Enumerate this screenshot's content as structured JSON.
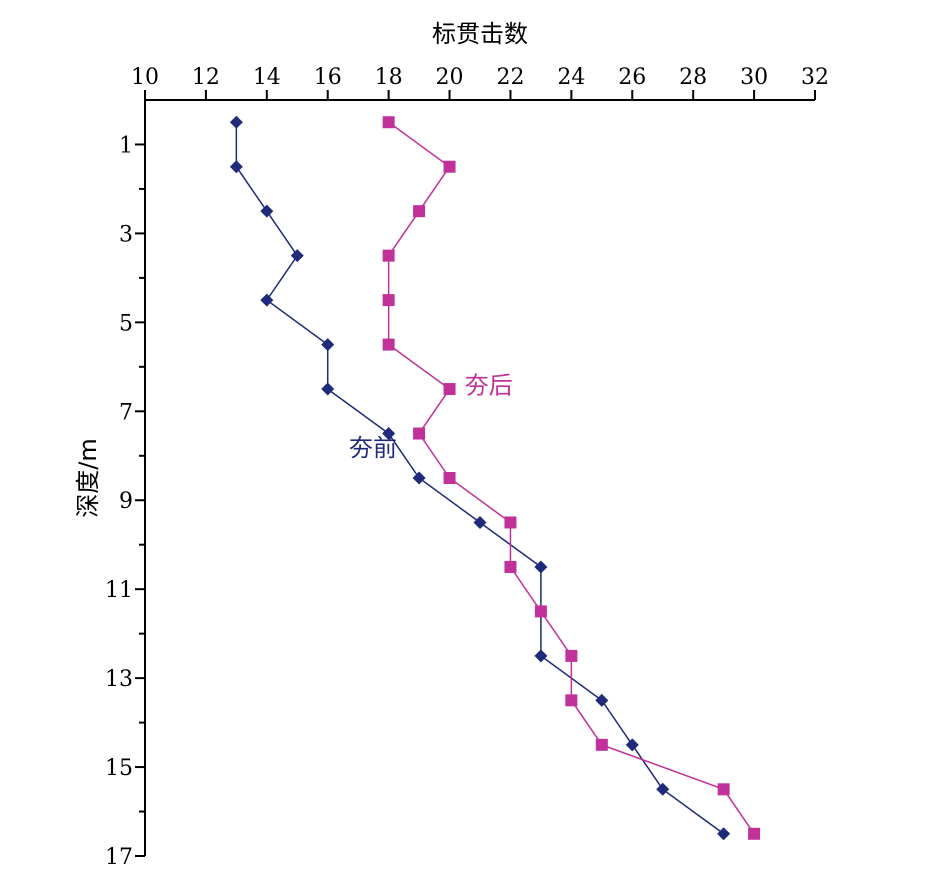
{
  "chart_data": {
    "type": "line",
    "xlabel": "标贯击数",
    "ylabel": "深度/m",
    "xlim": [
      10,
      32
    ],
    "ylim": [
      0,
      17
    ],
    "x_axis_position": "top",
    "y_axis_inverted": true,
    "x_ticks": [
      10,
      12,
      14,
      16,
      18,
      20,
      22,
      24,
      26,
      28,
      30,
      32
    ],
    "y_ticks": [
      1,
      3,
      5,
      7,
      9,
      11,
      13,
      15,
      17
    ],
    "grid": false,
    "series": [
      {
        "name": "夯前",
        "color": "#1f2a7a",
        "marker": "diamond",
        "label_at": {
          "x": 16.7,
          "y": 7.8
        },
        "points": [
          {
            "x": 13,
            "y": 0.5
          },
          {
            "x": 13,
            "y": 1.5
          },
          {
            "x": 14,
            "y": 2.5
          },
          {
            "x": 15,
            "y": 3.5
          },
          {
            "x": 14,
            "y": 4.5
          },
          {
            "x": 16,
            "y": 5.5
          },
          {
            "x": 16,
            "y": 6.5
          },
          {
            "x": 18,
            "y": 7.5
          },
          {
            "x": 19,
            "y": 8.5
          },
          {
            "x": 21,
            "y": 9.5
          },
          {
            "x": 23,
            "y": 10.5
          },
          {
            "x": 23,
            "y": 11.5
          },
          {
            "x": 23,
            "y": 12.5
          },
          {
            "x": 25,
            "y": 13.5
          },
          {
            "x": 26,
            "y": 14.5
          },
          {
            "x": 27,
            "y": 15.5
          },
          {
            "x": 29,
            "y": 16.5
          }
        ]
      },
      {
        "name": "夯后",
        "color": "#c0319a",
        "marker": "square",
        "label_at": {
          "x": 20.5,
          "y": 6.4
        },
        "points": [
          {
            "x": 18,
            "y": 0.5
          },
          {
            "x": 20,
            "y": 1.5
          },
          {
            "x": 19,
            "y": 2.5
          },
          {
            "x": 18,
            "y": 3.5
          },
          {
            "x": 18,
            "y": 4.5
          },
          {
            "x": 18,
            "y": 5.5
          },
          {
            "x": 20,
            "y": 6.5
          },
          {
            "x": 19,
            "y": 7.5
          },
          {
            "x": 20,
            "y": 8.5
          },
          {
            "x": 22,
            "y": 9.5
          },
          {
            "x": 22,
            "y": 10.5
          },
          {
            "x": 23,
            "y": 11.5
          },
          {
            "x": 24,
            "y": 12.5
          },
          {
            "x": 24,
            "y": 13.5
          },
          {
            "x": 25,
            "y": 14.5
          },
          {
            "x": 29,
            "y": 15.5
          },
          {
            "x": 30,
            "y": 16.5
          }
        ]
      }
    ]
  }
}
